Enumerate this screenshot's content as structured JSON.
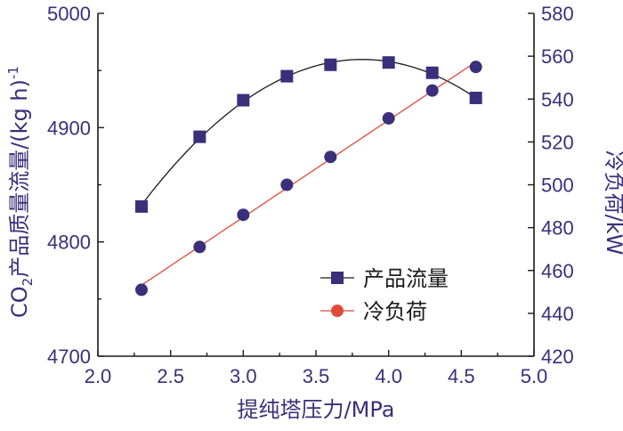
{
  "chart_data": {
    "type": "line",
    "x": [
      2.3,
      2.7,
      3.0,
      3.3,
      3.6,
      4.0,
      4.3,
      4.6
    ],
    "xlabel": "提纯塔压力/MPa",
    "xlim": [
      2.0,
      5.0
    ],
    "xticks": [
      "2.0",
      "2.5",
      "3.0",
      "3.5",
      "4.0",
      "4.5",
      "5.0"
    ],
    "ylabel_left": {
      "prefix": "CO",
      "subscript": "2",
      "main": "产品质量流量/(kg h)",
      "superscript": "-1"
    },
    "ylim_left": [
      4700,
      5000
    ],
    "yticks_left": [
      "4700",
      "4800",
      "4900",
      "5000"
    ],
    "ylabel_right": "冷负荷/kW",
    "ylim_right": [
      420,
      580
    ],
    "yticks_right": [
      "420",
      "440",
      "460",
      "480",
      "500",
      "520",
      "540",
      "560",
      "580"
    ],
    "grid": false,
    "legend_position": "lower-right",
    "series": [
      {
        "name": "产品流量",
        "axis": "left",
        "marker": "square",
        "color": "#3a2f7a",
        "line_color": "#1a1a1a",
        "values": [
          4831,
          4892,
          4924,
          4945,
          4955,
          4957,
          4948,
          4926
        ],
        "fit": "quadratic"
      },
      {
        "name": "冷负荷",
        "axis": "right",
        "marker": "circle",
        "color": "#3a2f7a",
        "line_color": "#e04a3a",
        "values": [
          451,
          471,
          486,
          500,
          513,
          531,
          544,
          555
        ],
        "fit": "linear"
      }
    ]
  }
}
